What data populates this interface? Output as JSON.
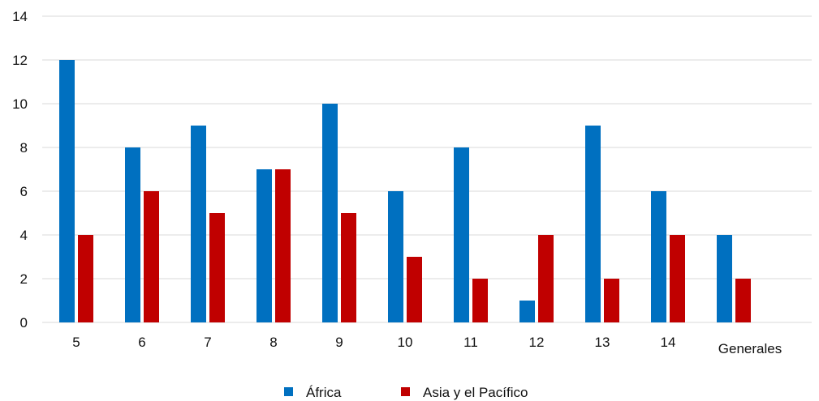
{
  "chart_data": {
    "type": "bar",
    "categories": [
      "5",
      "6",
      "7",
      "8",
      "9",
      "10",
      "11",
      "12",
      "13",
      "14",
      "Generales"
    ],
    "series": [
      {
        "name": "África",
        "color": "#0070C0",
        "values": [
          12,
          8,
          9,
          7,
          10,
          6,
          8,
          1,
          9,
          6,
          4
        ]
      },
      {
        "name": "Asia y el Pacífico",
        "color": "#C00000",
        "values": [
          4,
          6,
          5,
          7,
          5,
          3,
          2,
          4,
          2,
          4,
          2
        ]
      }
    ],
    "y_ticks": [
      "0",
      "2",
      "4",
      "6",
      "8",
      "10",
      "12",
      "14"
    ],
    "ylim": [
      0,
      14
    ],
    "grid": true,
    "legend_position": "bottom"
  }
}
